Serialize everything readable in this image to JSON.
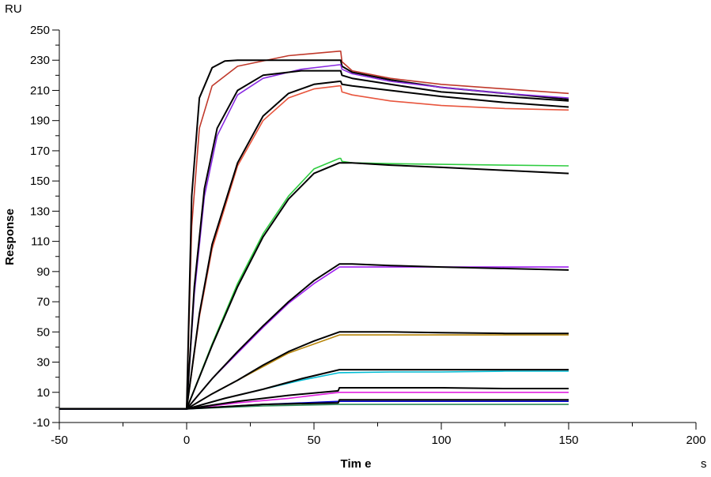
{
  "chart_data": {
    "type": "line",
    "title": "",
    "xlabel": "Tim e",
    "ylabel": "Response",
    "x_unit": "s",
    "y_unit": "RU",
    "xlim": [
      -50,
      200
    ],
    "ylim": [
      -10,
      250
    ],
    "x_ticks": [
      "-50",
      "0",
      "50",
      "100",
      "150",
      "200"
    ],
    "y_ticks": [
      "-10",
      "10",
      "30",
      "50",
      "70",
      "90",
      "110",
      "130",
      "150",
      "170",
      "190",
      "210",
      "230",
      "250"
    ],
    "grid": false,
    "legend": "none",
    "series": [
      {
        "color": "#c0392b",
        "points": [
          [
            -50,
            -1
          ],
          [
            0,
            -1
          ],
          [
            2,
            120
          ],
          [
            5,
            185
          ],
          [
            10,
            213
          ],
          [
            20,
            226
          ],
          [
            40,
            233
          ],
          [
            60,
            236
          ],
          [
            60.5,
            236
          ],
          [
            61,
            229
          ],
          [
            65,
            223
          ],
          [
            80,
            218
          ],
          [
            100,
            214
          ],
          [
            125,
            211
          ],
          [
            150,
            208
          ]
        ]
      },
      {
        "color": "#000000",
        "points": [
          [
            -50,
            -1
          ],
          [
            0,
            -1
          ],
          [
            2,
            140
          ],
          [
            5,
            205
          ],
          [
            10,
            225
          ],
          [
            15,
            229.5
          ],
          [
            20,
            230
          ],
          [
            60,
            230
          ],
          [
            60.5,
            230
          ],
          [
            61,
            226
          ],
          [
            65,
            222
          ],
          [
            80,
            217
          ],
          [
            100,
            212
          ],
          [
            125,
            208
          ],
          [
            150,
            204
          ]
        ]
      },
      {
        "color": "#8a2be2",
        "points": [
          [
            -50,
            -1
          ],
          [
            0,
            -1
          ],
          [
            3,
            75
          ],
          [
            7,
            140
          ],
          [
            12,
            180
          ],
          [
            20,
            207
          ],
          [
            30,
            218
          ],
          [
            45,
            224
          ],
          [
            60,
            227
          ],
          [
            60.5,
            227
          ],
          [
            61,
            224
          ],
          [
            65,
            221
          ],
          [
            80,
            216
          ],
          [
            100,
            212
          ],
          [
            125,
            208
          ],
          [
            150,
            205
          ]
        ]
      },
      {
        "color": "#000000",
        "points": [
          [
            -50,
            -1
          ],
          [
            0,
            -1
          ],
          [
            3,
            80
          ],
          [
            7,
            145
          ],
          [
            12,
            185
          ],
          [
            20,
            210
          ],
          [
            30,
            220
          ],
          [
            45,
            223
          ],
          [
            60,
            223
          ],
          [
            60.5,
            223
          ],
          [
            61,
            220
          ],
          [
            65,
            218
          ],
          [
            80,
            214
          ],
          [
            100,
            209
          ],
          [
            125,
            206
          ],
          [
            150,
            203
          ]
        ]
      },
      {
        "color": "#e8553d",
        "points": [
          [
            -50,
            -1
          ],
          [
            0,
            -1
          ],
          [
            5,
            60
          ],
          [
            10,
            105
          ],
          [
            20,
            160
          ],
          [
            30,
            190
          ],
          [
            40,
            205
          ],
          [
            50,
            211
          ],
          [
            60,
            213
          ],
          [
            60.5,
            213
          ],
          [
            61,
            209
          ],
          [
            65,
            207
          ],
          [
            80,
            203
          ],
          [
            100,
            200
          ],
          [
            125,
            198
          ],
          [
            150,
            197
          ]
        ]
      },
      {
        "color": "#000000",
        "points": [
          [
            -50,
            -1
          ],
          [
            0,
            -1
          ],
          [
            5,
            62
          ],
          [
            10,
            108
          ],
          [
            20,
            162
          ],
          [
            30,
            193
          ],
          [
            40,
            208
          ],
          [
            50,
            214
          ],
          [
            60,
            216
          ],
          [
            60.5,
            216
          ],
          [
            61,
            214
          ],
          [
            65,
            213
          ],
          [
            80,
            210
          ],
          [
            100,
            206
          ],
          [
            125,
            202
          ],
          [
            150,
            199
          ]
        ]
      },
      {
        "color": "#2ecc40",
        "points": [
          [
            -50,
            -1
          ],
          [
            0,
            -1
          ],
          [
            10,
            42
          ],
          [
            20,
            82
          ],
          [
            30,
            115
          ],
          [
            40,
            140
          ],
          [
            50,
            158
          ],
          [
            60,
            165
          ],
          [
            60.5,
            165
          ],
          [
            61,
            163
          ],
          [
            65,
            162
          ],
          [
            80,
            161.5
          ],
          [
            100,
            161
          ],
          [
            125,
            160.5
          ],
          [
            150,
            160
          ]
        ]
      },
      {
        "color": "#000000",
        "points": [
          [
            -50,
            -1
          ],
          [
            0,
            -1
          ],
          [
            10,
            41
          ],
          [
            20,
            80
          ],
          [
            30,
            113
          ],
          [
            40,
            138
          ],
          [
            50,
            155
          ],
          [
            60,
            162
          ],
          [
            60.5,
            162
          ],
          [
            61,
            162
          ],
          [
            65,
            162
          ],
          [
            80,
            160.5
          ],
          [
            100,
            159
          ],
          [
            125,
            157
          ],
          [
            150,
            155
          ]
        ]
      },
      {
        "color": "#a020f0",
        "points": [
          [
            -50,
            -1
          ],
          [
            0,
            -1
          ],
          [
            10,
            19
          ],
          [
            20,
            36
          ],
          [
            30,
            53
          ],
          [
            40,
            69
          ],
          [
            50,
            82
          ],
          [
            60,
            93
          ],
          [
            65,
            93
          ],
          [
            80,
            93
          ],
          [
            100,
            93
          ],
          [
            125,
            93
          ],
          [
            150,
            93
          ]
        ]
      },
      {
        "color": "#000000",
        "points": [
          [
            -50,
            -1
          ],
          [
            0,
            -1
          ],
          [
            10,
            19
          ],
          [
            20,
            37
          ],
          [
            30,
            54
          ],
          [
            40,
            70
          ],
          [
            50,
            84
          ],
          [
            60,
            95
          ],
          [
            65,
            95
          ],
          [
            80,
            94
          ],
          [
            100,
            93
          ],
          [
            125,
            92
          ],
          [
            150,
            91
          ]
        ]
      },
      {
        "color": "#b8860b",
        "points": [
          [
            -50,
            -1
          ],
          [
            0,
            -1
          ],
          [
            10,
            9
          ],
          [
            20,
            18
          ],
          [
            30,
            27
          ],
          [
            40,
            36
          ],
          [
            50,
            42
          ],
          [
            60,
            48
          ],
          [
            80,
            48
          ],
          [
            100,
            48
          ],
          [
            125,
            48
          ],
          [
            150,
            48
          ]
        ]
      },
      {
        "color": "#000000",
        "points": [
          [
            -50,
            -1
          ],
          [
            0,
            -1
          ],
          [
            10,
            9
          ],
          [
            20,
            18
          ],
          [
            30,
            28
          ],
          [
            40,
            37
          ],
          [
            50,
            44
          ],
          [
            60,
            50
          ],
          [
            80,
            50
          ],
          [
            100,
            49.5
          ],
          [
            125,
            49
          ],
          [
            150,
            49
          ]
        ]
      },
      {
        "color": "#00bcd4",
        "points": [
          [
            -50,
            -1
          ],
          [
            0,
            -1
          ],
          [
            15,
            6
          ],
          [
            30,
            12
          ],
          [
            45,
            18
          ],
          [
            60,
            23
          ],
          [
            80,
            23.5
          ],
          [
            100,
            23.5
          ],
          [
            125,
            24
          ],
          [
            150,
            24
          ]
        ]
      },
      {
        "color": "#000000",
        "points": [
          [
            -50,
            -1
          ],
          [
            0,
            -1
          ],
          [
            15,
            6
          ],
          [
            30,
            12
          ],
          [
            45,
            19
          ],
          [
            60,
            25
          ],
          [
            80,
            25
          ],
          [
            100,
            25
          ],
          [
            125,
            25
          ],
          [
            150,
            25
          ]
        ]
      },
      {
        "color": "#e020e0",
        "points": [
          [
            -50,
            -1
          ],
          [
            0,
            -1
          ],
          [
            20,
            3
          ],
          [
            40,
            6
          ],
          [
            60,
            10
          ],
          [
            80,
            10
          ],
          [
            100,
            10
          ],
          [
            125,
            10
          ],
          [
            150,
            10
          ]
        ]
      },
      {
        "color": "#000000",
        "points": [
          [
            -50,
            -1
          ],
          [
            0,
            -1
          ],
          [
            20,
            4
          ],
          [
            40,
            8
          ],
          [
            59.5,
            11
          ],
          [
            60,
            13
          ],
          [
            80,
            13
          ],
          [
            100,
            13
          ],
          [
            125,
            12.5
          ],
          [
            150,
            12.5
          ]
        ]
      },
      {
        "color": "#2e8b57",
        "points": [
          [
            -50,
            -1
          ],
          [
            0,
            -1
          ],
          [
            30,
            1
          ],
          [
            60,
            2
          ],
          [
            80,
            2
          ],
          [
            100,
            2
          ],
          [
            125,
            2
          ],
          [
            150,
            2
          ]
        ]
      },
      {
        "color": "#0000cd",
        "points": [
          [
            -50,
            -1
          ],
          [
            0,
            -1
          ],
          [
            30,
            2
          ],
          [
            60,
            4
          ],
          [
            80,
            4
          ],
          [
            100,
            4
          ],
          [
            125,
            4
          ],
          [
            150,
            4
          ]
        ]
      },
      {
        "color": "#000000",
        "points": [
          [
            -50,
            -1
          ],
          [
            0,
            -1
          ],
          [
            30,
            2
          ],
          [
            59.5,
            3
          ],
          [
            60,
            5
          ],
          [
            80,
            5
          ],
          [
            100,
            5
          ],
          [
            125,
            5
          ],
          [
            150,
            5
          ]
        ]
      }
    ]
  }
}
